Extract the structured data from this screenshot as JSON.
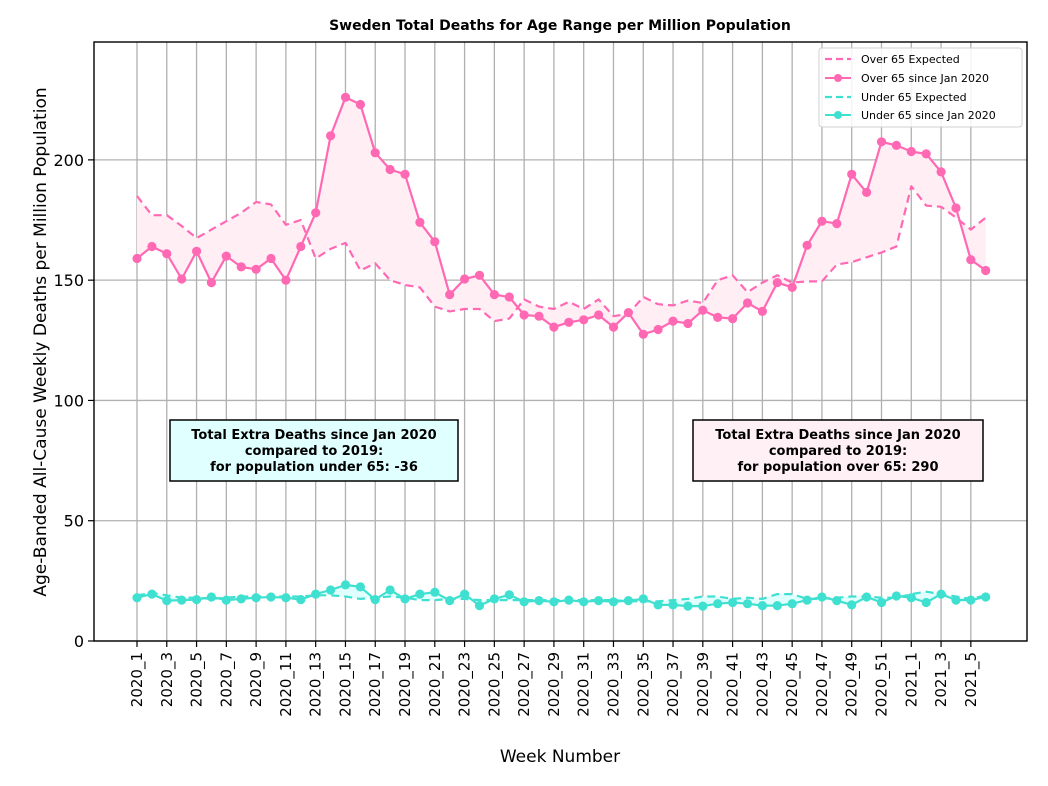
{
  "chart_data": {
    "type": "line",
    "title": "Sweden Total Deaths for Age Range per Million Population",
    "xlabel": "Week Number",
    "ylabel": "Age-Banded All-Cause Weekly Deaths per Million Population",
    "ylim": [
      0,
      249
    ],
    "yticks": [
      0,
      50,
      100,
      150,
      200
    ],
    "ytick_labels": [
      "0",
      "50",
      "100",
      "150",
      "200"
    ],
    "grid": true,
    "legend_position": "top-right",
    "x": [
      "2020_1",
      "2020_2",
      "2020_3",
      "2020_4",
      "2020_5",
      "2020_6",
      "2020_7",
      "2020_8",
      "2020_9",
      "2020_10",
      "2020_11",
      "2020_12",
      "2020_13",
      "2020_14",
      "2020_15",
      "2020_16",
      "2020_17",
      "2020_18",
      "2020_19",
      "2020_20",
      "2020_21",
      "2020_22",
      "2020_23",
      "2020_24",
      "2020_25",
      "2020_26",
      "2020_27",
      "2020_28",
      "2020_29",
      "2020_30",
      "2020_31",
      "2020_32",
      "2020_33",
      "2020_34",
      "2020_35",
      "2020_36",
      "2020_37",
      "2020_38",
      "2020_39",
      "2020_40",
      "2020_41",
      "2020_42",
      "2020_43",
      "2020_44",
      "2020_45",
      "2020_46",
      "2020_47",
      "2020_48",
      "2020_49",
      "2020_50",
      "2020_51",
      "2020_52",
      "2021_1",
      "2021_2",
      "2021_3",
      "2021_4",
      "2021_5",
      "2021_6"
    ],
    "xtick_labels": [
      "2020_1",
      "2020_3",
      "2020_5",
      "2020_7",
      "2020_9",
      "2020_11",
      "2020_13",
      "2020_15",
      "2020_17",
      "2020_19",
      "2020_21",
      "2020_23",
      "2020_25",
      "2020_27",
      "2020_29",
      "2020_31",
      "2020_33",
      "2020_35",
      "2020_37",
      "2020_39",
      "2020_41",
      "2020_43",
      "2020_45",
      "2020_47",
      "2020_49",
      "2020_51",
      "2021_1",
      "2021_3",
      "2021_5"
    ],
    "series": [
      {
        "name": "Over 65 Expected",
        "style": "dashed",
        "color": "#ff69b4",
        "values": [
          185,
          177,
          177,
          172.5,
          167.5,
          171,
          174.5,
          178,
          182.5,
          181.5,
          173,
          175,
          159,
          163,
          165.5,
          154,
          157,
          150,
          148,
          147,
          139,
          137,
          138,
          138,
          133,
          134,
          142,
          139,
          138,
          141,
          138,
          142,
          135,
          136,
          143,
          140,
          139.5,
          141.5,
          140.5,
          150,
          152,
          145,
          149,
          152,
          149,
          149.5,
          149.5,
          156.5,
          157.5,
          159.5,
          161.5,
          164,
          189,
          181,
          180.5,
          176,
          171,
          176
        ]
      },
      {
        "name": "Over 65 since Jan 2020",
        "style": "solid-marker",
        "color": "#ff69b4",
        "values": [
          159,
          164,
          161,
          150.5,
          162,
          149,
          160,
          155.5,
          154.5,
          159,
          150,
          164,
          178,
          210,
          226,
          223,
          203,
          196,
          194,
          174,
          166,
          144,
          150.5,
          152,
          144,
          143,
          135.5,
          135,
          130.5,
          132.5,
          133.5,
          135.5,
          130.5,
          136.5,
          127.5,
          129.5,
          133,
          132,
          137.5,
          134.5,
          134,
          140.5,
          137,
          149,
          147,
          164.5,
          174.5,
          173.5,
          194,
          186.5,
          207.5,
          206,
          203.5,
          202.5,
          195,
          180,
          158.5,
          154
        ]
      },
      {
        "name": "Under 65 Expected",
        "style": "dashed",
        "color": "#40e0d0",
        "values": [
          19,
          20,
          19,
          18,
          18,
          17.5,
          18,
          18.5,
          18.5,
          18.5,
          18.5,
          18.5,
          19,
          19,
          18.5,
          17.5,
          18,
          18.5,
          18,
          17,
          17,
          17.5,
          17.5,
          17,
          17,
          17,
          17,
          17,
          17,
          17,
          17,
          17,
          17,
          16.5,
          16.5,
          16.5,
          17,
          17.5,
          18.5,
          18.5,
          17.5,
          18,
          17.5,
          19.5,
          19.5,
          17.5,
          17.5,
          18,
          18.5,
          18.5,
          18,
          18,
          19.5,
          20.5,
          19.5,
          18.5,
          17.5,
          19
        ]
      },
      {
        "name": "Under 65 since Jan 2020",
        "style": "solid-marker",
        "color": "#40e0d0",
        "values": [
          18,
          19.5,
          16.8,
          17,
          17.2,
          18.3,
          17,
          17.5,
          18,
          18.3,
          18,
          17.2,
          19.5,
          21.2,
          23.3,
          22.5,
          17.2,
          21.2,
          17.5,
          19.5,
          20.3,
          16.8,
          19.5,
          14.7,
          17.5,
          19.2,
          16.3,
          16.8,
          16.3,
          17,
          16.3,
          16.8,
          16.3,
          16.8,
          17.5,
          15,
          15,
          14.5,
          14.5,
          15.5,
          16,
          15.5,
          14.7,
          14.7,
          15.5,
          17,
          18.3,
          16.8,
          15,
          18.3,
          16,
          18.7,
          18,
          16,
          19.5,
          17,
          17,
          18.3
        ]
      }
    ],
    "fill_colors": {
      "over65": "#ffeef4",
      "under65": "#e0ffff"
    },
    "annotations": [
      {
        "id": "under",
        "lines": [
          "Total Extra Deaths since Jan 2020",
          "compared to 2019:",
          "for population under 65: -36"
        ],
        "bg": "#e0ffff"
      },
      {
        "id": "over",
        "lines": [
          "Total Extra Deaths since Jan 2020",
          "compared to 2019:",
          "for population over 65: 290"
        ],
        "bg": "#fff0f5"
      }
    ]
  }
}
